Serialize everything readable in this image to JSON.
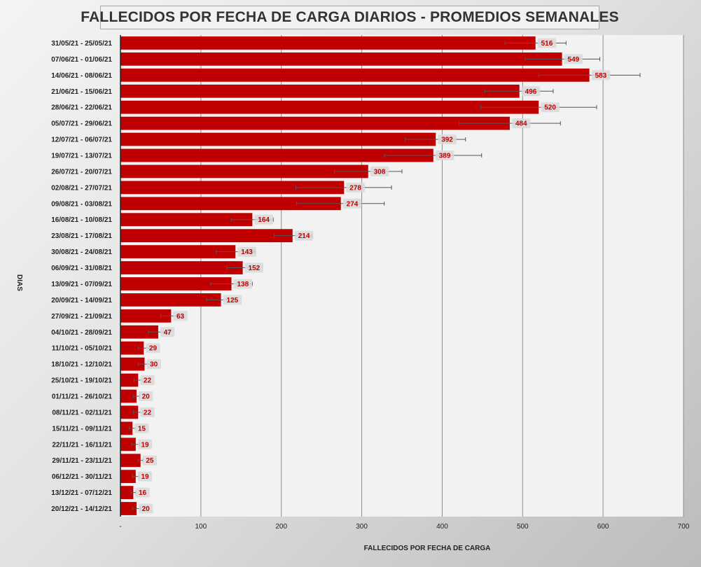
{
  "chart_data": {
    "type": "bar",
    "orientation": "horizontal",
    "title": "FALLECIDOS POR FECHA DE CARGA DIARIOS - PROMEDIOS SEMANALES",
    "xlabel": "FALLECIDOS POR FECHA DE CARGA",
    "ylabel": "DIAS",
    "xlim": [
      0,
      700
    ],
    "x_ticks": [
      "-",
      "100",
      "200",
      "300",
      "400",
      "500",
      "600",
      "700"
    ],
    "grid": true,
    "bar_color": "#c00000",
    "categories": [
      "31/05/21 - 25/05/21",
      "07/06/21 - 01/06/21",
      "14/06/21 - 08/06/21",
      "21/06/21 - 15/06/21",
      "28/06/21 - 22/06/21",
      "05/07/21 - 29/06/21",
      "12/07/21 - 06/07/21",
      "19/07/21 - 13/07/21",
      "26/07/21 - 20/07/21",
      "02/08/21 - 27/07/21",
      "09/08/21 - 03/08/21",
      "16/08/21 - 10/08/21",
      "23/08/21 - 17/08/21",
      "30/08/21 - 24/08/21",
      "06/09/21 - 31/08/21",
      "13/09/21 - 07/09/21",
      "20/09/21 - 14/09/21",
      "27/09/21 - 21/09/21",
      "04/10/21 - 28/09/21",
      "11/10/21 - 05/10/21",
      "18/10/21 - 12/10/21",
      "25/10/21 - 19/10/21",
      "01/11/21 - 26/10/21",
      "08/11/21 - 02/11/21",
      "15/11/21 - 09/11/21",
      "22/11/21 - 16/11/21",
      "29/11/21 - 23/11/21",
      "06/12/21 - 30/11/21",
      "13/12/21 - 07/12/21",
      "20/12/21 - 14/12/21"
    ],
    "values": [
      516,
      549,
      583,
      496,
      520,
      484,
      392,
      389,
      308,
      278,
      274,
      164,
      214,
      143,
      152,
      138,
      125,
      63,
      47,
      29,
      30,
      22,
      20,
      22,
      15,
      19,
      25,
      19,
      16,
      20
    ],
    "error_low": [
      478,
      503,
      520,
      453,
      448,
      421,
      354,
      328,
      266,
      218,
      219,
      138,
      191,
      119,
      132,
      112,
      107,
      50,
      35,
      22,
      22,
      17,
      16,
      16,
      11,
      14,
      22,
      15,
      13,
      15
    ],
    "error_high": [
      554,
      596,
      646,
      538,
      592,
      547,
      429,
      449,
      350,
      337,
      328,
      190,
      238,
      167,
      172,
      164,
      143,
      76,
      59,
      36,
      38,
      27,
      24,
      28,
      19,
      24,
      28,
      23,
      19,
      25
    ]
  }
}
